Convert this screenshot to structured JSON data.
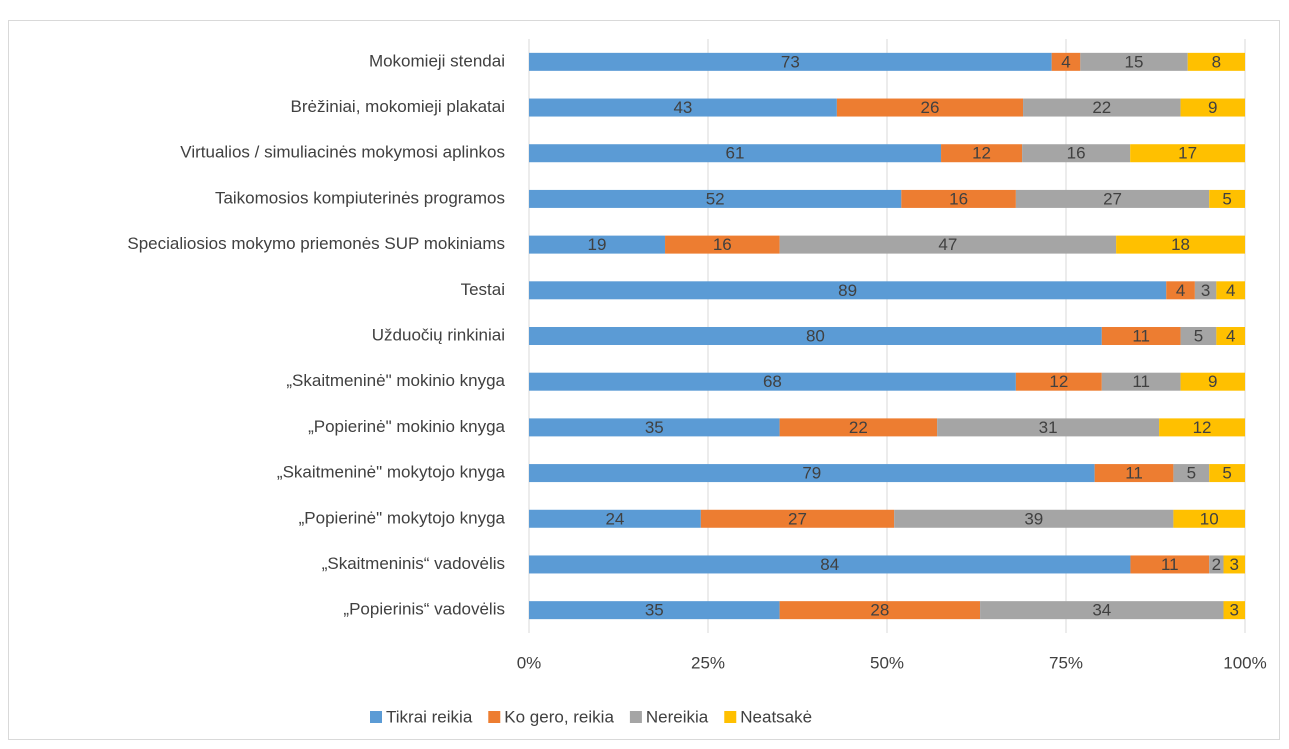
{
  "chart_data": {
    "type": "bar",
    "orientation": "horizontal",
    "stacked": "percent",
    "categories": [
      "Mokomieji stendai",
      "Brėžiniai, mokomieji plakatai",
      "Virtualios / simuliacinės mokymosi aplinkos",
      "Taikomosios kompiuterinės programos",
      "Specialiosios mokymo priemonės SUP mokiniams",
      "Testai",
      "Užduočių rinkiniai",
      "„Skaitmeninė\" mokinio knyga",
      "„Popierinė\" mokinio knyga",
      "„Skaitmeninė\" mokytojo knyga",
      "„Popierinė\" mokytojo knyga",
      "„Skaitmeninis“ vadovėlis",
      "„Popierinis“ vadovėlis"
    ],
    "series": [
      {
        "name": "Tikrai reikia",
        "color": "#5b9bd5",
        "values": [
          73,
          43,
          61,
          52,
          19,
          89,
          80,
          68,
          35,
          79,
          24,
          84,
          35
        ]
      },
      {
        "name": "Ko gero, reikia",
        "color": "#ed7d31",
        "values": [
          4,
          26,
          12,
          16,
          16,
          4,
          11,
          12,
          22,
          11,
          27,
          11,
          28
        ]
      },
      {
        "name": "Nereikia",
        "color": "#a5a5a5",
        "values": [
          15,
          22,
          16,
          27,
          47,
          3,
          5,
          11,
          31,
          5,
          39,
          2,
          34
        ]
      },
      {
        "name": "Neatsakė",
        "color": "#ffc000",
        "values": [
          8,
          9,
          17,
          5,
          18,
          4,
          4,
          9,
          12,
          5,
          10,
          3,
          3
        ]
      }
    ],
    "xlim": [
      0,
      100
    ],
    "xticks": [
      {
        "value": 0,
        "label": "0%"
      },
      {
        "value": 25,
        "label": "25%"
      },
      {
        "value": 50,
        "label": "50%"
      },
      {
        "value": 75,
        "label": "75%"
      },
      {
        "value": 100,
        "label": "100%"
      }
    ],
    "grid": true,
    "legend": "bottom"
  }
}
